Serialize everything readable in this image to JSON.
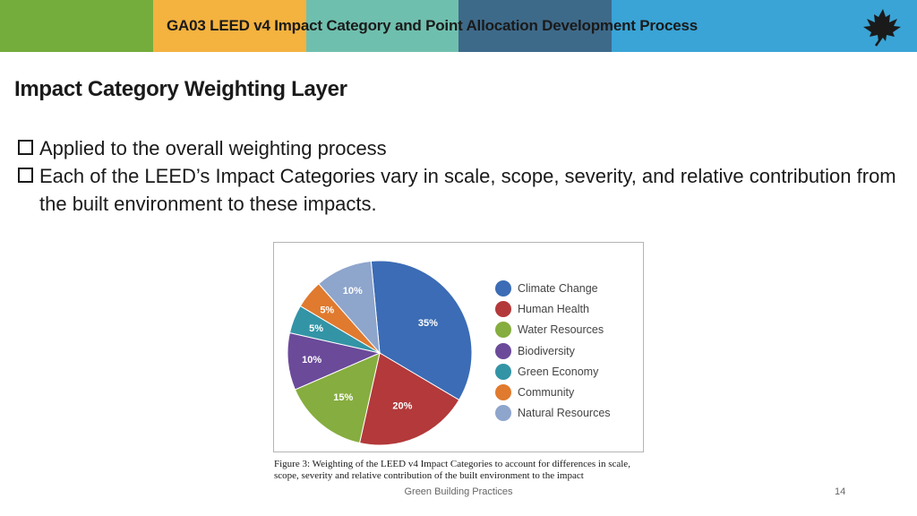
{
  "header": {
    "title": "GA03 LEED v4 Impact Category and Point Allocation Development Process",
    "bar_colors": [
      "#74ad3b",
      "#f4b23f",
      "#6fbfae",
      "#3e6a8a",
      "#3aa4d6"
    ],
    "logo_icon": "maple-leaf-icon"
  },
  "slide": {
    "title": "Impact Category Weighting Layer",
    "bullets": [
      {
        "text": "Applied to the overall weighting process"
      },
      {
        "text": "Each of the LEED’s Impact Categories vary in scale, scope, severity, and relative contribution from the built environment to these impacts."
      }
    ]
  },
  "chart_data": {
    "type": "pie",
    "title": "",
    "slices": [
      {
        "label": "Climate Change",
        "value": 35,
        "display": "35%",
        "color": "#3b6cb5"
      },
      {
        "label": "Human Health",
        "value": 20,
        "display": "20%",
        "color": "#b3393a"
      },
      {
        "label": "Water Resources",
        "value": 15,
        "display": "15%",
        "color": "#86ad3f"
      },
      {
        "label": "Biodiversity",
        "value": 10,
        "display": "10%",
        "color": "#6b4a9a"
      },
      {
        "label": "Green Economy",
        "value": 5,
        "display": "5%",
        "color": "#3394a6"
      },
      {
        "label": "Community",
        "value": 5,
        "display": "5%",
        "color": "#e07a2e"
      },
      {
        "label": "Natural Resources",
        "value": 10,
        "display": "10%",
        "color": "#8ea5cc"
      }
    ],
    "legend_position": "right"
  },
  "figure": {
    "caption": "Figure 3: Weighting of the LEED v4 Impact Categories to account for differences in scale, scope, severity and relative contribution of the built environment to the impact"
  },
  "footer": {
    "center_text": "Green Building Practices",
    "page_number": "14"
  }
}
